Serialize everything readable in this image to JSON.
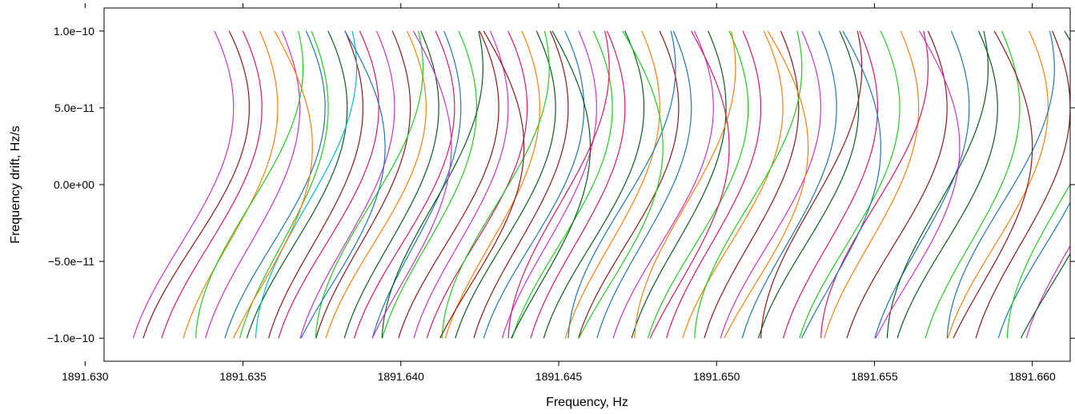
{
  "chart_data": {
    "type": "line",
    "title": "",
    "xlabel": "Frequency, Hz",
    "ylabel": "Frequency drift, Hz/s",
    "xlim": [
      1891.6306,
      1891.6612
    ],
    "ylim": [
      -1.15e-10,
      1.15e-10
    ],
    "x_ticks": [
      1891.63,
      1891.635,
      1891.64,
      1891.645,
      1891.65,
      1891.655,
      1891.66
    ],
    "x_tick_labels": [
      "1891.630",
      "1891.635",
      "1891.640",
      "1891.645",
      "1891.650",
      "1891.655",
      "1891.660"
    ],
    "y_ticks": [
      1e-10,
      5e-11,
      0.0,
      -5e-11,
      -1e-10
    ],
    "y_tick_labels": [
      "1.0e−10",
      "5.0e−11",
      "0.0e+00",
      "−5.0e−11",
      "−1.0e−10"
    ],
    "grid": false,
    "legend": "none",
    "description_of_series": "Many sideways sinusoidal tracks; each track spans drift -1e-10..1e-10 with frequency = center + amplitude*sin(phase)",
    "curve_model": {
      "drift_range": [
        -1e-10,
        1e-10
      ],
      "phase_span_deg": 200,
      "default_amplitude": 0.0016
    },
    "series": [
      {
        "center": 1891.633,
        "amplitude": 0.0017,
        "phase0": -1.05,
        "color": "#cc33cc"
      },
      {
        "center": 1891.6334,
        "amplitude": 0.0018,
        "phase0": -1.05,
        "color": "#8b1a1a"
      },
      {
        "center": 1891.6339,
        "amplitude": 0.0017,
        "phase0": -1.05,
        "color": "#d81b60"
      },
      {
        "center": 1891.6345,
        "amplitude": 0.0016,
        "phase0": -1.05,
        "color": "#ff7f0e"
      },
      {
        "center": 1891.6352,
        "amplitude": 0.0016,
        "phase0": -1.05,
        "color": "#cc33cc"
      },
      {
        "center": 1891.6359,
        "amplitude": 0.0017,
        "phase0": -1.05,
        "color": "#1f77b4"
      },
      {
        "center": 1891.6362,
        "amplitude": 0.0015,
        "phase0": -1.05,
        "color": "#22cc22"
      },
      {
        "center": 1891.6366,
        "amplitude": 0.0017,
        "phase0": -1.05,
        "color": "#0b5d1e"
      },
      {
        "center": 1891.6372,
        "amplitude": 0.0016,
        "phase0": -1.05,
        "color": "#8b1a1a"
      },
      {
        "center": 1891.6376,
        "amplitude": 0.0017,
        "phase0": -1.05,
        "color": "#d81b60"
      },
      {
        "center": 1891.6382,
        "amplitude": 0.0016,
        "phase0": -1.05,
        "color": "#cc33cc"
      },
      {
        "center": 1891.6387,
        "amplitude": 0.0016,
        "phase0": -1.05,
        "color": "#8b1a1a"
      },
      {
        "center": 1891.6391,
        "amplitude": 0.0017,
        "phase0": -1.05,
        "color": "#ff7f0e"
      },
      {
        "center": 1891.6396,
        "amplitude": 0.0016,
        "phase0": -1.05,
        "color": "#0b5d1e"
      },
      {
        "center": 1891.64,
        "amplitude": 0.0017,
        "phase0": -1.05,
        "color": "#d81b60"
      },
      {
        "center": 1891.6404,
        "amplitude": 0.0015,
        "phase0": -1.05,
        "color": "#1f77b4"
      },
      {
        "center": 1891.6408,
        "amplitude": 0.0016,
        "phase0": -1.05,
        "color": "#22cc22"
      },
      {
        "center": 1891.6414,
        "amplitude": 0.0017,
        "phase0": -1.05,
        "color": "#8b1a1a"
      },
      {
        "center": 1891.6418,
        "amplitude": 0.0016,
        "phase0": -1.05,
        "color": "#cc33cc"
      },
      {
        "center": 1891.6423,
        "amplitude": 0.0017,
        "phase0": -1.05,
        "color": "#d81b60"
      },
      {
        "center": 1891.6428,
        "amplitude": 0.0016,
        "phase0": -1.05,
        "color": "#ff7f0e"
      },
      {
        "center": 1891.6432,
        "amplitude": 0.0017,
        "phase0": -1.05,
        "color": "#0b5d1e"
      },
      {
        "center": 1891.6437,
        "amplitude": 0.0016,
        "phase0": -1.05,
        "color": "#8b1a1a"
      },
      {
        "center": 1891.6441,
        "amplitude": 0.0017,
        "phase0": -1.05,
        "color": "#1f77b4"
      },
      {
        "center": 1891.6446,
        "amplitude": 0.0016,
        "phase0": -1.05,
        "color": "#cc33cc"
      },
      {
        "center": 1891.645,
        "amplitude": 0.0017,
        "phase0": -1.05,
        "color": "#22cc22"
      },
      {
        "center": 1891.6455,
        "amplitude": 0.0016,
        "phase0": -1.05,
        "color": "#d81b60"
      },
      {
        "center": 1891.646,
        "amplitude": 0.0017,
        "phase0": -1.05,
        "color": "#0b5d1e"
      },
      {
        "center": 1891.6466,
        "amplitude": 0.0016,
        "phase0": -1.05,
        "color": "#ff7f0e"
      },
      {
        "center": 1891.6471,
        "amplitude": 0.0017,
        "phase0": -1.05,
        "color": "#8b1a1a"
      },
      {
        "center": 1891.6476,
        "amplitude": 0.0016,
        "phase0": -1.05,
        "color": "#1f77b4"
      },
      {
        "center": 1891.6482,
        "amplitude": 0.0017,
        "phase0": -1.05,
        "color": "#cc33cc"
      },
      {
        "center": 1891.6487,
        "amplitude": 0.0016,
        "phase0": -1.05,
        "color": "#0b5d1e"
      },
      {
        "center": 1891.6493,
        "amplitude": 0.0017,
        "phase0": -1.05,
        "color": "#22cc22"
      },
      {
        "center": 1891.6498,
        "amplitude": 0.0016,
        "phase0": -1.05,
        "color": "#d81b60"
      },
      {
        "center": 1891.6504,
        "amplitude": 0.0017,
        "phase0": -1.05,
        "color": "#ff7f0e"
      },
      {
        "center": 1891.651,
        "amplitude": 0.0016,
        "phase0": -1.05,
        "color": "#8b1a1a"
      },
      {
        "center": 1891.6516,
        "amplitude": 0.0017,
        "phase0": -1.05,
        "color": "#cc33cc"
      },
      {
        "center": 1891.6522,
        "amplitude": 0.0016,
        "phase0": -1.05,
        "color": "#1f77b4"
      },
      {
        "center": 1891.6528,
        "amplitude": 0.0017,
        "phase0": -1.05,
        "color": "#0b5d1e"
      },
      {
        "center": 1891.6535,
        "amplitude": 0.0016,
        "phase0": -1.05,
        "color": "#d81b60"
      },
      {
        "center": 1891.6541,
        "amplitude": 0.0017,
        "phase0": -1.05,
        "color": "#22cc22"
      },
      {
        "center": 1891.6548,
        "amplitude": 0.0016,
        "phase0": -1.05,
        "color": "#ff7f0e"
      },
      {
        "center": 1891.6556,
        "amplitude": 0.0017,
        "phase0": -1.05,
        "color": "#8b1a1a"
      },
      {
        "center": 1891.6564,
        "amplitude": 0.0016,
        "phase0": -1.05,
        "color": "#1f77b4"
      },
      {
        "center": 1891.6572,
        "amplitude": 0.0017,
        "phase0": -1.05,
        "color": "#0b5d1e"
      },
      {
        "center": 1891.658,
        "amplitude": 0.0016,
        "phase0": -1.05,
        "color": "#22cc22"
      },
      {
        "center": 1891.6588,
        "amplitude": 0.0017,
        "phase0": -1.05,
        "color": "#ff7f0e"
      },
      {
        "center": 1891.6596,
        "amplitude": 0.0016,
        "phase0": -1.05,
        "color": "#8b1a1a"
      },
      {
        "center": 1891.6604,
        "amplitude": 0.0017,
        "phase0": -1.05,
        "color": "#1f77b4"
      },
      {
        "center": 1891.6612,
        "amplitude": 0.0016,
        "phase0": -1.05,
        "color": "#cc33cc"
      },
      {
        "center": 1891.6352,
        "amplitude": 0.0017,
        "phase0": -1.5,
        "color": "#22cc22"
      },
      {
        "center": 1891.637,
        "amplitude": 0.0016,
        "phase0": -1.5,
        "color": "#00bcd4"
      },
      {
        "center": 1891.639,
        "amplitude": 0.0017,
        "phase0": -1.5,
        "color": "#22cc22"
      },
      {
        "center": 1891.641,
        "amplitude": 0.0016,
        "phase0": -1.5,
        "color": "#0b5d1e"
      },
      {
        "center": 1891.643,
        "amplitude": 0.0017,
        "phase0": -1.5,
        "color": "#22cc22"
      },
      {
        "center": 1891.645,
        "amplitude": 0.0016,
        "phase0": -1.5,
        "color": "#d81b60"
      },
      {
        "center": 1891.647,
        "amplitude": 0.0017,
        "phase0": -1.5,
        "color": "#1f77b4"
      },
      {
        "center": 1891.649,
        "amplitude": 0.0016,
        "phase0": -1.5,
        "color": "#ff7f0e"
      },
      {
        "center": 1891.651,
        "amplitude": 0.0017,
        "phase0": -1.5,
        "color": "#22cc22"
      },
      {
        "center": 1891.653,
        "amplitude": 0.0016,
        "phase0": -1.5,
        "color": "#8b1a1a"
      },
      {
        "center": 1891.655,
        "amplitude": 0.0017,
        "phase0": -1.5,
        "color": "#d81b60"
      },
      {
        "center": 1891.657,
        "amplitude": 0.0016,
        "phase0": -1.5,
        "color": "#0b5d1e"
      },
      {
        "center": 1891.659,
        "amplitude": 0.0017,
        "phase0": -1.5,
        "color": "#1f77b4"
      },
      {
        "center": 1891.6608,
        "amplitude": 0.0016,
        "phase0": -1.5,
        "color": "#22cc22"
      },
      {
        "center": 1891.6356,
        "amplitude": 0.0016,
        "phase0": -0.6,
        "color": "#ff7f0e"
      },
      {
        "center": 1891.6378,
        "amplitude": 0.0017,
        "phase0": -0.6,
        "color": "#1f77b4"
      },
      {
        "center": 1891.64,
        "amplitude": 0.0016,
        "phase0": -0.6,
        "color": "#cc33cc"
      },
      {
        "center": 1891.6422,
        "amplitude": 0.0017,
        "phase0": -0.6,
        "color": "#8b1a1a"
      },
      {
        "center": 1891.6444,
        "amplitude": 0.0016,
        "phase0": -0.6,
        "color": "#0b5d1e"
      },
      {
        "center": 1891.6466,
        "amplitude": 0.0017,
        "phase0": -0.6,
        "color": "#22cc22"
      },
      {
        "center": 1891.6488,
        "amplitude": 0.0016,
        "phase0": -0.6,
        "color": "#d81b60"
      },
      {
        "center": 1891.6512,
        "amplitude": 0.0017,
        "phase0": -0.6,
        "color": "#ff7f0e"
      },
      {
        "center": 1891.6536,
        "amplitude": 0.0016,
        "phase0": -0.6,
        "color": "#1f77b4"
      },
      {
        "center": 1891.656,
        "amplitude": 0.0017,
        "phase0": -0.6,
        "color": "#cc33cc"
      },
      {
        "center": 1891.6584,
        "amplitude": 0.0016,
        "phase0": -0.6,
        "color": "#8b1a1a"
      },
      {
        "center": 1891.6606,
        "amplitude": 0.0017,
        "phase0": -0.6,
        "color": "#0b5d1e"
      }
    ]
  }
}
